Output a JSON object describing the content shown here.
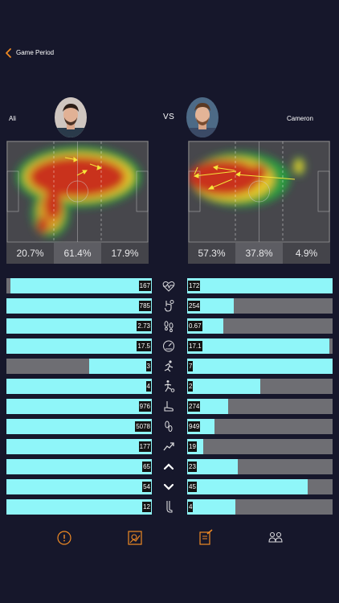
{
  "header": {
    "title": "Game Period",
    "back_icon": "chevron-left-icon",
    "accent": "#f08a24"
  },
  "players": {
    "left": {
      "name": "Ali",
      "zones": [
        "20.7%",
        "61.4%",
        "17.9%"
      ]
    },
    "right": {
      "name": "Cameron",
      "zones": [
        "57.3%",
        "37.8%",
        "4.9%"
      ]
    }
  },
  "vs_label": "VS",
  "colors": {
    "bar_fill": "#8ff6f9",
    "bar_track": "#6e6e73",
    "background": "#16172b",
    "icon": "#d9d9dc"
  },
  "stats": [
    {
      "icon": "heartbeat-icon",
      "left": "167",
      "right": "172",
      "left_frac": 0.97,
      "right_frac": 1.0
    },
    {
      "icon": "ball-touch-icon",
      "left": "785",
      "right": "254",
      "left_frac": 1.0,
      "right_frac": 0.32
    },
    {
      "icon": "footprints-icon",
      "left": "2.73",
      "right": "0.67",
      "left_frac": 1.0,
      "right_frac": 0.25
    },
    {
      "icon": "speedometer-icon",
      "left": "17.5",
      "right": "17.1",
      "left_frac": 1.0,
      "right_frac": 0.98
    },
    {
      "icon": "sprint-icon",
      "left": "3",
      "right": "7",
      "left_frac": 0.43,
      "right_frac": 1.0
    },
    {
      "icon": "kick-icon",
      "left": "4",
      "right": "2",
      "left_frac": 1.0,
      "right_frac": 0.5
    },
    {
      "icon": "boot-icon",
      "left": "976",
      "right": "274",
      "left_frac": 1.0,
      "right_frac": 0.28
    },
    {
      "icon": "steps-icon",
      "left": "5078",
      "right": "949",
      "left_frac": 1.0,
      "right_frac": 0.19
    },
    {
      "icon": "trend-up-icon",
      "left": "177",
      "right": "19",
      "left_frac": 1.0,
      "right_frac": 0.11
    },
    {
      "icon": "chevron-up-icon",
      "left": "65",
      "right": "23",
      "left_frac": 1.0,
      "right_frac": 0.35
    },
    {
      "icon": "chevron-down-icon",
      "left": "54",
      "right": "45",
      "left_frac": 1.0,
      "right_frac": 0.83
    },
    {
      "icon": "leg-icon",
      "left": "12",
      "right": "4",
      "left_frac": 1.0,
      "right_frac": 0.33
    }
  ],
  "nav": [
    {
      "icon": "info-icon",
      "label": "Info"
    },
    {
      "icon": "heatmap-icon",
      "label": "Heatmap"
    },
    {
      "icon": "notes-icon",
      "label": "Notes"
    },
    {
      "icon": "compare-players-icon",
      "label": "Compare"
    }
  ]
}
